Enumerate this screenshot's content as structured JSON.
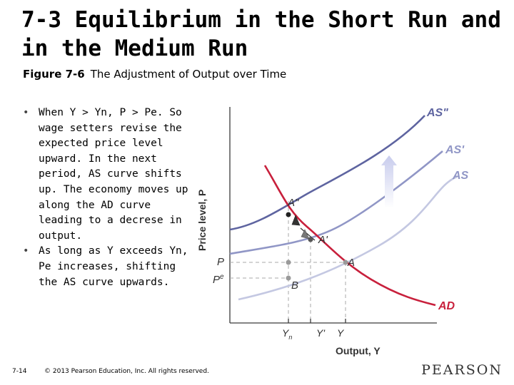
{
  "slide": {
    "title": "7-3 Equilibrium in the Short Run and in the Medium Run",
    "figure_number": "Figure 7-6",
    "figure_title": "The Adjustment of Output over Time",
    "bullets": [
      "When Y > Yn, P > Pe. So wage setters revise the expected price level upward. In the next period, AS curve shifts up. The economy moves up along the AD curve leading to  a decrese in output.",
      "As long as Y exceeds Yn, Pe increases, shifting the AS curve upwards."
    ],
    "page_number": "7-14",
    "copyright": "© 2013 Pearson Education, Inc. All rights reserved.",
    "logo": "PEARSON"
  },
  "diagram": {
    "axis_y_label": "Price level, P",
    "axis_x_label": "Output, Y",
    "curves": {
      "as2": "AS\"",
      "as1": "AS'",
      "as0": "AS",
      "ad": "AD"
    },
    "points": {
      "a2": "A\"",
      "a1": "A'",
      "a": "A",
      "b": "B"
    },
    "y_ticks": {
      "p": "P",
      "pe": "P",
      "pe_sup": "e"
    },
    "x_ticks": {
      "yn": "Y",
      "yn_sub": "n",
      "yprime": "Y'",
      "y": "Y"
    }
  },
  "colors": {
    "curve_red": "#c8203c",
    "as_dark": "#5e64a0",
    "as_mid": "#9096c6",
    "as_light": "#c4c8e2",
    "arrow_fill": "#c8cced",
    "axis": "#3a3a3a",
    "guide": "#aaaaaa"
  }
}
